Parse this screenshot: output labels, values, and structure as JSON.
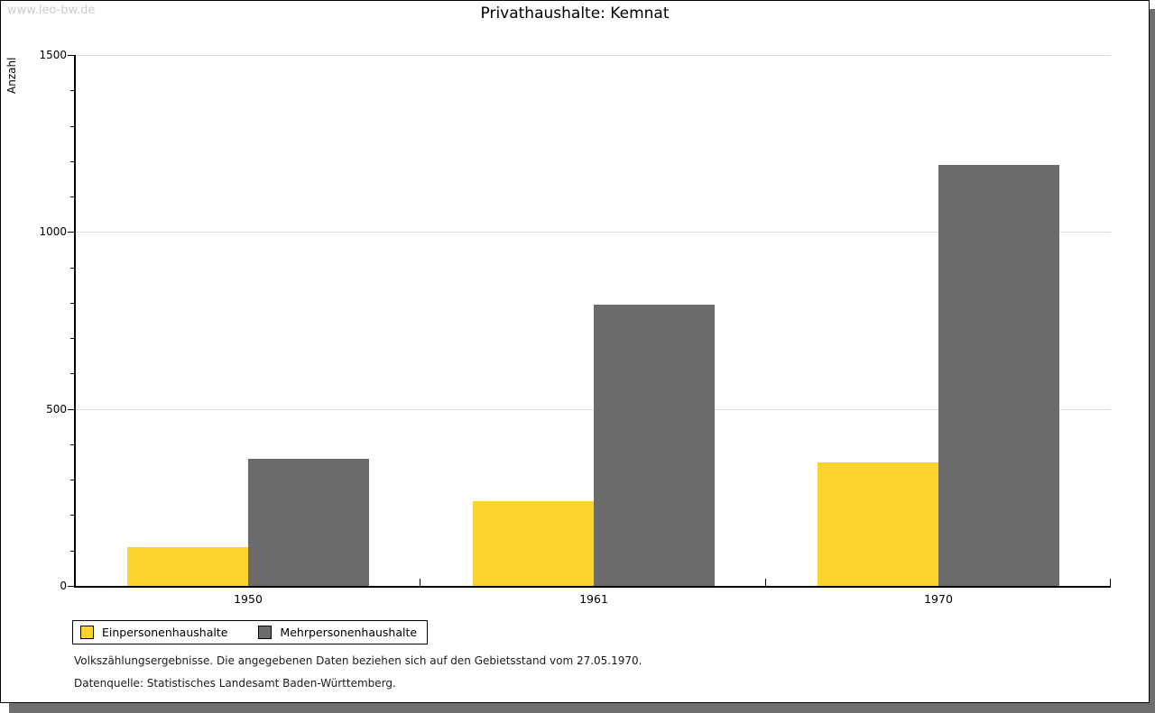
{
  "watermark": "www.leo-bw.de",
  "header": {
    "title": "Privathaushalte: Kemnat"
  },
  "axes": {
    "y_label": "Anzahl",
    "y_major_tick_labels": [
      "0",
      "500",
      "1000",
      "1500"
    ]
  },
  "chart_data": {
    "type": "bar",
    "title": "Privathaushalte: Kemnat",
    "xlabel": "",
    "ylabel": "Anzahl",
    "categories": [
      "1950",
      "1961",
      "1970"
    ],
    "series": [
      {
        "name": "Einpersonenhaushalte",
        "color": "#FBD32D",
        "values": [
          110,
          240,
          350
        ]
      },
      {
        "name": "Mehrpersonenhaushalte",
        "color": "#6B6B6B",
        "values": [
          360,
          795,
          1190
        ]
      }
    ],
    "ylim": [
      0,
      1500
    ],
    "y_major_ticks": [
      0,
      500,
      1000,
      1500
    ],
    "y_minor_interval": 100,
    "grid": "horizontal-major",
    "gridline_color": "#dddddd",
    "legend_position": "bottom-left"
  },
  "legend": {
    "items": [
      {
        "label": "Einpersonenhaushalte",
        "color": "#FBD32D"
      },
      {
        "label": "Mehrpersonenhaushalte",
        "color": "#6B6B6B"
      }
    ]
  },
  "footnotes": {
    "line1": "Volkszählungsergebnisse. Die angegebenen Daten beziehen sich auf den Gebietsstand vom 27.05.1970.",
    "line2": "Datenquelle: Statistisches Landesamt Baden-Württemberg."
  }
}
